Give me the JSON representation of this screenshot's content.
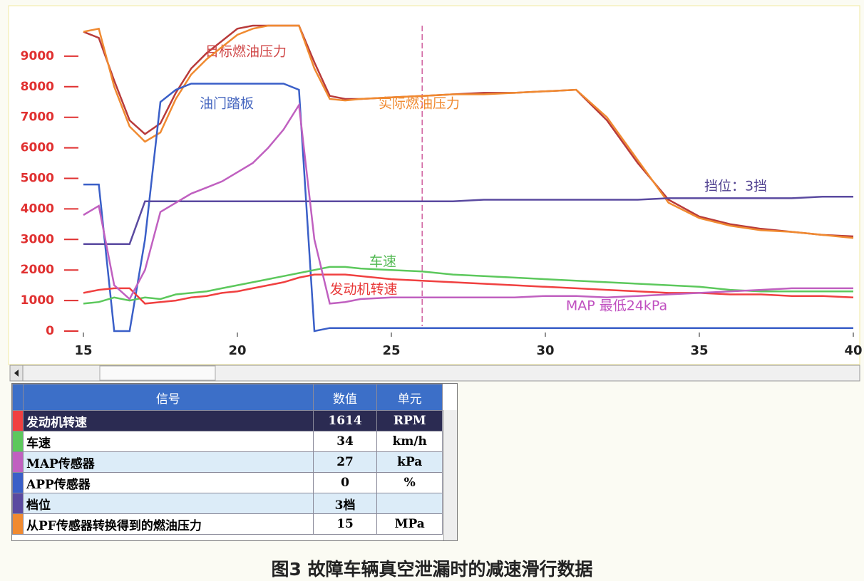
{
  "chart_data": {
    "type": "line",
    "x": [
      15,
      15.5,
      16,
      16.5,
      17,
      17.5,
      18,
      18.5,
      19,
      19.5,
      20,
      20.5,
      21,
      21.5,
      22,
      22.5,
      23,
      23.5,
      24,
      25,
      26,
      27,
      28,
      29,
      30,
      31,
      32,
      33,
      34,
      35,
      36,
      37,
      38,
      39,
      40
    ],
    "xlim": [
      15,
      40
    ],
    "xticks": [
      15,
      20,
      25,
      30,
      35,
      40
    ],
    "ylim": [
      0,
      10000
    ],
    "yticks": [
      0,
      1000,
      2000,
      3000,
      4000,
      5000,
      6000,
      7000,
      8000,
      9000
    ],
    "cursor_x": 26,
    "series": [
      {
        "name": "目标燃油压力",
        "color": "#b83a3a",
        "label_color": "#d04848",
        "values": [
          9800,
          9600,
          8200,
          6900,
          6450,
          6800,
          7800,
          8600,
          9100,
          9500,
          9900,
          10000,
          10000,
          10000,
          10000,
          8800,
          7700,
          7600,
          7600,
          7650,
          7700,
          7750,
          7800,
          7800,
          7850,
          7900,
          6900,
          5500,
          4300,
          3750,
          3500,
          3350,
          3250,
          3150,
          3100
        ]
      },
      {
        "name": "实际燃油压力",
        "color": "#f08a30",
        "label_color": "#f08a30",
        "values": [
          9800,
          9900,
          8000,
          6700,
          6200,
          6500,
          7600,
          8400,
          8900,
          9300,
          9700,
          9900,
          10000,
          10000,
          10000,
          8600,
          7600,
          7550,
          7600,
          7650,
          7700,
          7750,
          7750,
          7800,
          7850,
          7900,
          7000,
          5600,
          4200,
          3700,
          3450,
          3300,
          3250,
          3150,
          3050
        ]
      },
      {
        "name": "油门踏板",
        "color": "#3a5fc8",
        "label_color": "#4868c0",
        "values": [
          4800,
          4800,
          0,
          0,
          3000,
          7500,
          7900,
          8100,
          8100,
          8100,
          8100,
          8100,
          8100,
          8100,
          7900,
          0,
          100,
          100,
          100,
          100,
          100,
          100,
          100,
          100,
          100,
          100,
          100,
          100,
          100,
          100,
          100,
          100,
          100,
          100,
          100
        ]
      },
      {
        "name": "挡位：3挡",
        "color": "#5a4aa0",
        "label_color": "#504090",
        "values": [
          2850,
          2850,
          2850,
          2850,
          4250,
          4250,
          4250,
          4250,
          4250,
          4250,
          4250,
          4250,
          4250,
          4250,
          4250,
          4250,
          4250,
          4250,
          4250,
          4250,
          4250,
          4250,
          4300,
          4300,
          4300,
          4300,
          4300,
          4300,
          4350,
          4350,
          4350,
          4350,
          4350,
          4400,
          4400
        ]
      },
      {
        "name": "车速",
        "color": "#5cc85c",
        "label_color": "#50b850",
        "values": [
          900,
          950,
          1100,
          1000,
          1100,
          1050,
          1200,
          1250,
          1300,
          1400,
          1500,
          1600,
          1700,
          1800,
          1900,
          2000,
          2100,
          2100,
          2050,
          2000,
          1950,
          1850,
          1800,
          1750,
          1700,
          1650,
          1600,
          1550,
          1500,
          1450,
          1350,
          1300,
          1300,
          1300,
          1300
        ]
      },
      {
        "name": "发动机转速",
        "color": "#f04040",
        "label_color": "#e83838",
        "values": [
          1250,
          1350,
          1400,
          1400,
          900,
          950,
          1000,
          1100,
          1150,
          1250,
          1300,
          1400,
          1500,
          1600,
          1750,
          1850,
          1850,
          1850,
          1800,
          1700,
          1650,
          1600,
          1550,
          1500,
          1450,
          1400,
          1350,
          1300,
          1250,
          1250,
          1200,
          1200,
          1150,
          1150,
          1100
        ]
      },
      {
        "name": "MAP 最低24kPa",
        "color": "#c060c0",
        "label_color": "#c050c0",
        "values": [
          3800,
          4100,
          1500,
          1050,
          2000,
          3900,
          4200,
          4500,
          4700,
          4900,
          5200,
          5500,
          6000,
          6600,
          7400,
          3000,
          900,
          950,
          1050,
          1100,
          1100,
          1100,
          1100,
          1100,
          1150,
          1150,
          1100,
          1150,
          1200,
          1250,
          1300,
          1350,
          1400,
          1400,
          1400
        ]
      }
    ]
  },
  "table": {
    "header": [
      "信号",
      "数值",
      "单元"
    ],
    "rows": [
      {
        "signal": "发动机转速",
        "value": "1614",
        "unit": "RPM"
      },
      {
        "signal": "车速",
        "value": "34",
        "unit": "km/h"
      },
      {
        "signal": "MAP传感器",
        "value": "27",
        "unit": "kPa"
      },
      {
        "signal": "APP传感器",
        "value": "0",
        "unit": "%"
      },
      {
        "signal": "档位",
        "value": "3档"
      },
      {
        "signal": "从PF传感器转换得到的燃油压力",
        "value": "15",
        "unit": "MPa"
      }
    ]
  },
  "caption": "图3 故障车辆真空泄漏时的减速滑行数据"
}
